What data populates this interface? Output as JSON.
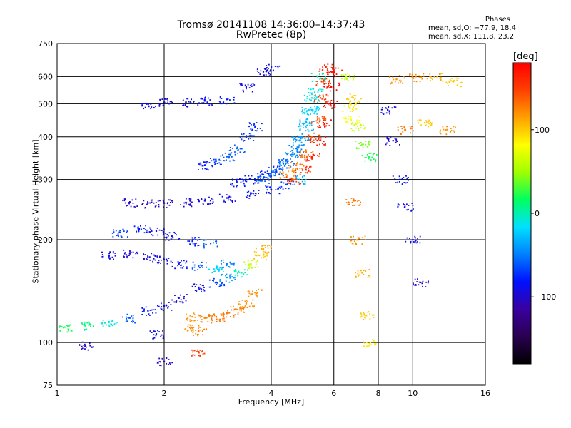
{
  "header": {
    "title_line1": "Tromsø 20141108 14:36:00–14:37:43",
    "title_line2": "RwPretec (8p)"
  },
  "stats": {
    "title": "Phases",
    "line_o": "mean, sd,O: −77.9, 18.4",
    "line_x": "mean, sd,X: 111.8, 23.2"
  },
  "colorbar": {
    "unit": "[deg]",
    "range": [
      -180,
      180
    ],
    "ticks": [
      {
        "value": 100,
        "label": "100"
      },
      {
        "value": 0,
        "label": "0"
      },
      {
        "value": -100,
        "label": "−100"
      }
    ],
    "colormap": [
      "#000000",
      "#2a0050",
      "#3a00a0",
      "#0010ff",
      "#0080ff",
      "#00e0ff",
      "#00ff60",
      "#a0ff00",
      "#ffff00",
      "#ffa000",
      "#ff4000",
      "#ff0000"
    ]
  },
  "chart_data": {
    "type": "scatter",
    "xlabel": "Frequency [MHz]",
    "ylabel": "Stationary phase Virtual Height [km]",
    "xscale": "log",
    "yscale": "log",
    "xlim": [
      1,
      16
    ],
    "ylim": [
      75,
      750
    ],
    "xticks": [
      {
        "value": 1,
        "label": "1"
      },
      {
        "value": 2,
        "label": "2"
      },
      {
        "value": 4,
        "label": "4"
      },
      {
        "value": 6,
        "label": "6"
      },
      {
        "value": 8,
        "label": "8"
      },
      {
        "value": 10,
        "label": "10"
      },
      {
        "value": 16,
        "label": "16"
      }
    ],
    "yticks": [
      {
        "value": 75,
        "label": "75"
      },
      {
        "value": 100,
        "label": "100"
      },
      {
        "value": 200,
        "label": "200"
      },
      {
        "value": 300,
        "label": "300"
      },
      {
        "value": 400,
        "label": "400"
      },
      {
        "value": 500,
        "label": "500"
      },
      {
        "value": 600,
        "label": "600"
      },
      {
        "value": 750,
        "label": "750"
      }
    ],
    "gridx": [
      2,
      4,
      6,
      8,
      10
    ],
    "gridy": [
      100,
      200,
      300,
      400,
      500,
      600
    ],
    "grid": true,
    "series": [
      {
        "points": [
          [
            1.05,
            111,
            20
          ],
          [
            1.2,
            112,
            10
          ],
          [
            1.4,
            115,
            -10
          ],
          [
            1.6,
            118,
            -60
          ],
          [
            1.8,
            124,
            -80
          ],
          [
            2.0,
            128,
            -90
          ],
          [
            2.2,
            135,
            -95
          ],
          [
            2.5,
            145,
            -90
          ],
          [
            2.8,
            150,
            -70
          ],
          [
            3.0,
            155,
            -40
          ],
          [
            3.3,
            160,
            0
          ],
          [
            3.5,
            170,
            60
          ],
          [
            3.7,
            180,
            100
          ],
          [
            3.8,
            188,
            110
          ]
        ]
      },
      {
        "points": [
          [
            2.4,
            119,
            120
          ],
          [
            2.6,
            118,
            125
          ],
          [
            2.8,
            119,
            130
          ],
          [
            3.0,
            122,
            130
          ],
          [
            3.2,
            125,
            125
          ],
          [
            3.4,
            130,
            120
          ],
          [
            3.6,
            140,
            120
          ]
        ]
      },
      {
        "points": [
          [
            1.4,
            180,
            -90
          ],
          [
            1.6,
            182,
            -100
          ],
          [
            1.8,
            178,
            -95
          ],
          [
            2.0,
            175,
            -90
          ],
          [
            2.2,
            170,
            -85
          ],
          [
            2.5,
            168,
            -60
          ],
          [
            2.8,
            165,
            -20
          ],
          [
            3.0,
            170,
            -50
          ]
        ]
      },
      {
        "points": [
          [
            1.5,
            210,
            -70
          ],
          [
            1.7,
            215,
            -80
          ],
          [
            1.9,
            212,
            -90
          ],
          [
            2.1,
            205,
            -85
          ],
          [
            2.4,
            198,
            -80
          ],
          [
            2.7,
            195,
            -60
          ]
        ]
      },
      {
        "points": [
          [
            1.6,
            257,
            -100
          ],
          [
            1.8,
            256,
            -105
          ],
          [
            2.0,
            256,
            -105
          ],
          [
            2.3,
            257,
            -100
          ],
          [
            2.6,
            260,
            -95
          ],
          [
            3.0,
            265,
            -90
          ],
          [
            3.5,
            272,
            -85
          ],
          [
            4.0,
            280,
            -80
          ],
          [
            4.4,
            290,
            -70
          ],
          [
            4.8,
            300,
            -30
          ]
        ]
      },
      {
        "points": [
          [
            3.2,
            295,
            -80
          ],
          [
            3.5,
            300,
            -80
          ],
          [
            3.8,
            310,
            -75
          ],
          [
            4.1,
            320,
            -70
          ],
          [
            4.4,
            340,
            -60
          ],
          [
            4.7,
            370,
            -50
          ],
          [
            4.9,
            400,
            -40
          ],
          [
            5.0,
            440,
            -30
          ],
          [
            5.1,
            480,
            -20
          ],
          [
            5.2,
            520,
            -10
          ]
        ]
      },
      {
        "points": [
          [
            3.8,
            300,
            -60
          ],
          [
            4.1,
            315,
            -55
          ],
          [
            4.4,
            335,
            -50
          ],
          [
            4.6,
            360,
            -45
          ],
          [
            4.8,
            390,
            -40
          ],
          [
            5.0,
            430,
            -30
          ],
          [
            5.2,
            480,
            -20
          ],
          [
            5.3,
            540,
            -10
          ],
          [
            5.4,
            600,
            0
          ]
        ]
      },
      {
        "points": [
          [
            4.4,
            310,
            120
          ],
          [
            4.7,
            330,
            130
          ],
          [
            5.0,
            360,
            130
          ],
          [
            5.2,
            400,
            140
          ],
          [
            5.4,
            450,
            140
          ],
          [
            5.5,
            520,
            150
          ],
          [
            5.6,
            580,
            150
          ],
          [
            5.7,
            640,
            160
          ]
        ]
      },
      {
        "points": [
          [
            4.6,
            300,
            150
          ],
          [
            4.9,
            320,
            160
          ],
          [
            5.2,
            350,
            165
          ],
          [
            5.4,
            390,
            170
          ],
          [
            5.6,
            440,
            170
          ],
          [
            5.8,
            500,
            175
          ],
          [
            5.9,
            560,
            175
          ],
          [
            6.0,
            620,
            175
          ]
        ]
      },
      {
        "points": [
          [
            1.8,
            500,
            -90
          ],
          [
            2.0,
            505,
            -95
          ],
          [
            2.3,
            505,
            -90
          ],
          [
            2.6,
            510,
            -85
          ],
          [
            3.0,
            515,
            -80
          ],
          [
            3.4,
            560,
            -90
          ],
          [
            3.8,
            620,
            -95
          ],
          [
            4.0,
            640,
            -90
          ]
        ]
      },
      {
        "points": [
          [
            2.6,
            330,
            -80
          ],
          [
            2.8,
            340,
            -70
          ],
          [
            3.0,
            350,
            -60
          ],
          [
            3.2,
            370,
            -60
          ],
          [
            3.4,
            400,
            -70
          ],
          [
            3.6,
            430,
            -75
          ]
        ]
      },
      {
        "points": [
          [
            6.6,
            490,
            90
          ],
          [
            6.7,
            450,
            80
          ],
          [
            6.8,
            520,
            100
          ],
          [
            7.0,
            430,
            60
          ],
          [
            7.2,
            380,
            40
          ],
          [
            7.5,
            350,
            20
          ]
        ]
      },
      {
        "points": [
          [
            6.5,
            600,
            60
          ],
          [
            6.8,
            260,
            130
          ],
          [
            7.0,
            200,
            120
          ],
          [
            7.2,
            160,
            110
          ],
          [
            7.4,
            120,
            100
          ],
          [
            7.6,
            100,
            90
          ]
        ]
      },
      {
        "points": [
          [
            8.5,
            480,
            -90
          ],
          [
            8.8,
            390,
            -100
          ],
          [
            9.2,
            300,
            -80
          ],
          [
            9.5,
            250,
            -90
          ],
          [
            10.0,
            200,
            -90
          ],
          [
            10.5,
            150,
            -100
          ]
        ]
      },
      {
        "points": [
          [
            9.0,
            590,
            120
          ],
          [
            9.5,
            420,
            130
          ],
          [
            10.2,
            600,
            120
          ],
          [
            10.8,
            440,
            100
          ],
          [
            11.5,
            600,
            110
          ],
          [
            12.5,
            420,
            120
          ],
          [
            13.0,
            580,
            100
          ]
        ]
      },
      {
        "points": [
          [
            2.4,
            110,
            120
          ],
          [
            2.5,
            108,
            125
          ],
          [
            2.0,
            88,
            -100
          ],
          [
            2.5,
            94,
            150
          ],
          [
            1.9,
            106,
            -90
          ],
          [
            1.2,
            98,
            -100
          ]
        ]
      }
    ]
  }
}
